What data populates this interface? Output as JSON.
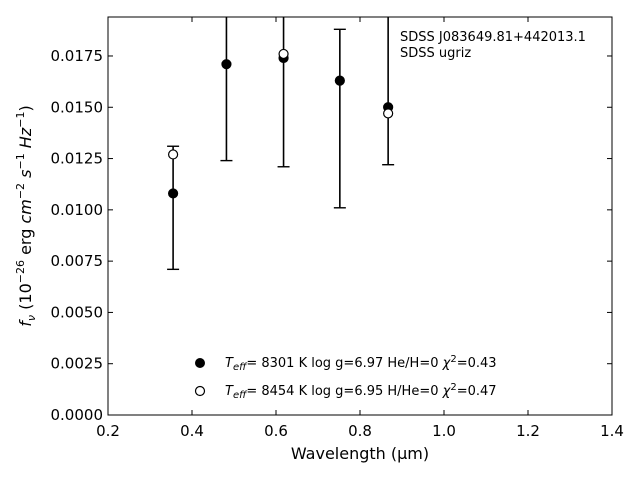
{
  "chart_data": {
    "type": "scatter",
    "xlabel": "Wavelength (μm)",
    "ylabel_parts": {
      "f": "f",
      "nu": "ν",
      "open": " (10",
      "exp": "−26",
      "erg": " erg ",
      "cm": "cm",
      "cm_exp": "−2",
      "s": "s",
      "s_exp": "−1",
      "hz": "Hz",
      "hz_exp": "−1",
      "close": ")"
    },
    "xlim": [
      0.2,
      1.4
    ],
    "ylim": [
      0.0,
      0.0194
    ],
    "xticks": [
      0.2,
      0.4,
      0.6,
      0.8,
      1.0,
      1.2,
      1.4
    ],
    "xtick_labels": [
      "0.2",
      "0.4",
      "0.6",
      "0.8",
      "1.0",
      "1.2",
      "1.4"
    ],
    "yticks": [
      0.0,
      0.0025,
      0.005,
      0.0075,
      0.01,
      0.0125,
      0.015,
      0.0175
    ],
    "ytick_labels": [
      "0.0000",
      "0.0025",
      "0.0050",
      "0.0075",
      "0.0100",
      "0.0125",
      "0.0150",
      "0.0175"
    ],
    "annotations": [
      "SDSS J083649.81+442013.1",
      "SDSS ugriz"
    ],
    "observed": {
      "x": [
        0.355,
        0.482,
        0.618,
        0.752,
        0.867
      ],
      "y": [
        0.0108,
        0.0171,
        0.0174,
        0.0163,
        0.0149
      ],
      "err_low": [
        0.0071,
        0.0124,
        0.0121,
        0.0101,
        0.0122
      ],
      "err_high": [
        0.0131,
        0.0194,
        0.0194,
        0.0188,
        0.0194
      ]
    },
    "series": [
      {
        "name": "H",
        "marker": "filled-circle",
        "x": [
          0.355,
          0.482,
          0.618,
          0.752,
          0.867
        ],
        "y": [
          0.0108,
          0.0171,
          0.0174,
          0.0163,
          0.015
        ],
        "legend": {
          "teff_label": "T",
          "teff_sub": "eff",
          "text": "=  8301 K  log g=6.97  He/H=0  ",
          "chi": "χ",
          "chi_exp": "2",
          "chi_val": "=0.43"
        }
      },
      {
        "name": "He",
        "marker": "open-circle",
        "x": [
          0.355,
          0.618,
          0.867
        ],
        "y": [
          0.0127,
          0.0176,
          0.0147
        ],
        "legend": {
          "teff_label": "T",
          "teff_sub": "eff",
          "text": "=  8454 K  log g=6.95  H/He=0  ",
          "chi": "χ",
          "chi_exp": "2",
          "chi_val": "=0.47"
        }
      }
    ],
    "grid": false,
    "legend_position": "bottom-center"
  }
}
